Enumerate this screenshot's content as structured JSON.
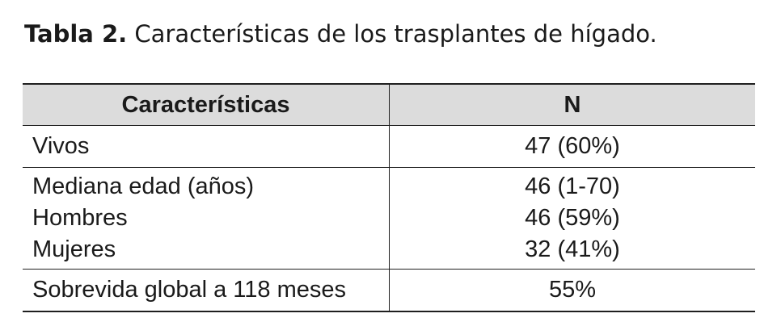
{
  "caption": {
    "label": "Tabla 2.",
    "text": " Características de los trasplantes de hígado."
  },
  "table": {
    "headers": [
      "Características",
      "N"
    ],
    "rows": [
      {
        "label": "Vivos",
        "value": "47 (60%)"
      },
      {
        "label": "Mediana edad (años)",
        "value": "46 (1-70)"
      },
      {
        "label": "Hombres",
        "value": "46 (59%)"
      },
      {
        "label": "Mujeres",
        "value": "32 (41%)"
      },
      {
        "label": "Sobrevida global a 118 meses",
        "value": "55%"
      }
    ]
  }
}
